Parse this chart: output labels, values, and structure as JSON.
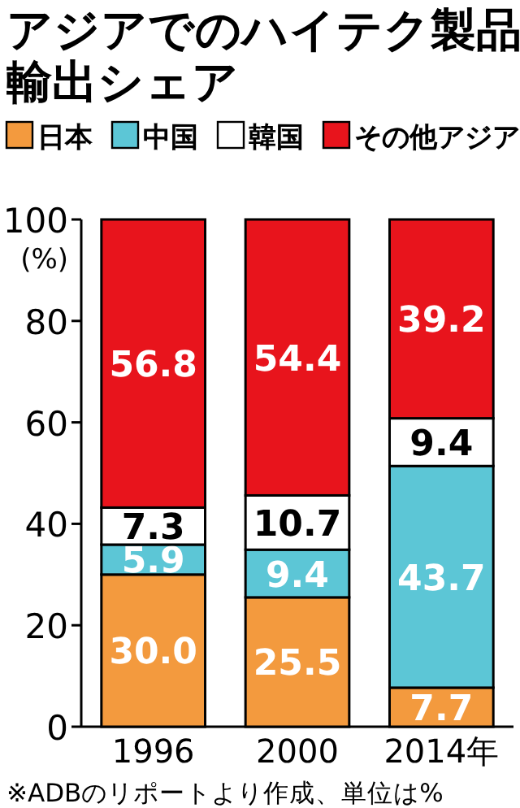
{
  "chart_data": {
    "type": "bar",
    "stacked": true,
    "title": "アジアでのハイテク製品輸出シェア",
    "ylabel": "(%)",
    "categories": [
      "1996",
      "2000",
      "2014年"
    ],
    "series": [
      {
        "name": "日本",
        "color": "#f39a3e",
        "values": [
          30.0,
          25.5,
          7.7
        ],
        "value_labels": [
          "30.0",
          "25.5",
          "7.7"
        ]
      },
      {
        "name": "中国",
        "color": "#5cc6d6",
        "values": [
          5.9,
          9.4,
          43.7
        ],
        "value_labels": [
          "5.9",
          "9.4",
          "43.7"
        ]
      },
      {
        "name": "韓国",
        "color": "#ffffff",
        "values": [
          7.3,
          10.7,
          9.4
        ],
        "value_labels": [
          "7.3",
          "10.7",
          "9.4"
        ]
      },
      {
        "name": "その他アジア",
        "color": "#e8141c",
        "values": [
          56.8,
          54.4,
          39.2
        ],
        "value_labels": [
          "56.8",
          "54.4",
          "39.2"
        ]
      }
    ],
    "ylim": [
      0,
      100
    ],
    "yticks": [
      0,
      20,
      40,
      60,
      80,
      100
    ],
    "legend": "top",
    "grid": false,
    "annotations": [
      "※ADBのリポートより作成、単位は%"
    ]
  }
}
